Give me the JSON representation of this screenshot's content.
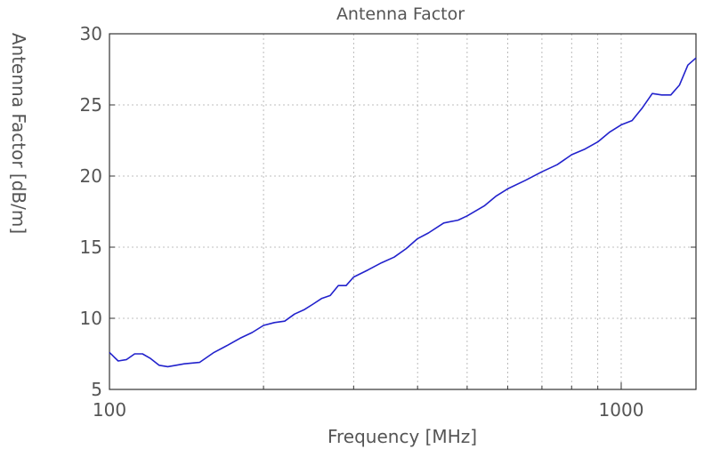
{
  "chart_data": {
    "type": "line",
    "title": "Antenna Factor",
    "xlabel": "Frequency [MHz]",
    "ylabel": "Antenna Factor [dB/m]",
    "x_scale": "log",
    "xlim": [
      100,
      1400
    ],
    "ylim": [
      5,
      30
    ],
    "x_tick_labels": [
      {
        "value": 100,
        "label": "100"
      },
      {
        "value": 1000,
        "label": "1000"
      }
    ],
    "y_tick_labels": [
      {
        "value": 5,
        "label": "5"
      },
      {
        "value": 10,
        "label": "10"
      },
      {
        "value": 15,
        "label": "15"
      },
      {
        "value": 20,
        "label": "20"
      },
      {
        "value": 25,
        "label": "25"
      },
      {
        "value": 30,
        "label": "30"
      }
    ],
    "x_gridlines": [
      200,
      300,
      400,
      500,
      600,
      700,
      800,
      900,
      1000
    ],
    "y_gridlines": [
      10,
      15,
      20,
      25
    ],
    "grid": true,
    "line_color": "#2222cc",
    "series": [
      {
        "x": [
          100,
          104,
          108,
          112,
          116,
          120,
          125,
          130,
          135,
          140,
          150,
          160,
          170,
          180,
          190,
          200,
          210,
          220,
          230,
          240,
          250,
          260,
          270,
          280,
          290,
          300,
          320,
          340,
          360,
          380,
          400,
          420,
          450,
          480,
          500,
          540,
          570,
          600,
          650,
          700,
          750,
          800,
          850,
          900,
          950,
          1000,
          1050,
          1100,
          1150,
          1200,
          1250,
          1300,
          1350,
          1400
        ],
        "y": [
          7.6,
          7.0,
          7.1,
          7.5,
          7.5,
          7.2,
          6.7,
          6.6,
          6.7,
          6.8,
          6.9,
          7.6,
          8.1,
          8.6,
          9.0,
          9.5,
          9.7,
          9.8,
          10.3,
          10.6,
          11.0,
          11.4,
          11.6,
          12.3,
          12.3,
          12.9,
          13.4,
          13.9,
          14.3,
          14.9,
          15.6,
          16.0,
          16.7,
          16.9,
          17.2,
          17.9,
          18.6,
          19.1,
          19.7,
          20.3,
          20.8,
          21.5,
          21.9,
          22.4,
          23.1,
          23.6,
          23.9,
          24.8,
          25.8,
          25.7,
          25.7,
          26.4,
          27.8,
          28.3
        ]
      }
    ]
  }
}
